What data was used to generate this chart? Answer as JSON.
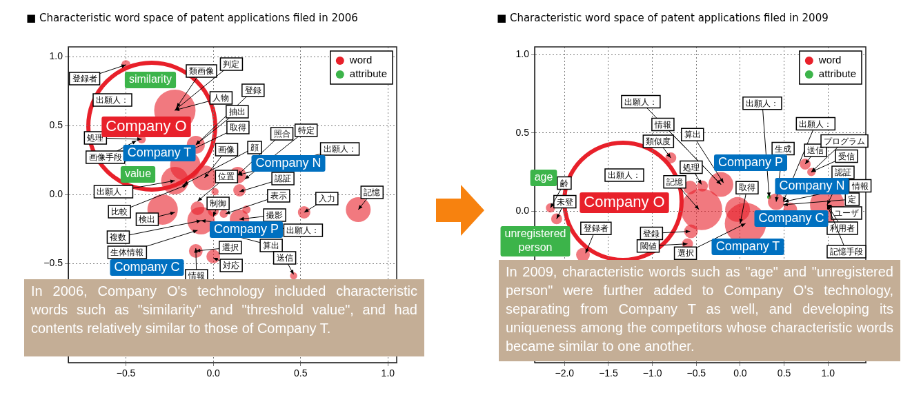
{
  "chart_data": [
    {
      "type": "bubble",
      "title": "■ Characteristic word space of patent applications filed in 2006",
      "xlim": [
        -0.83,
        1.05
      ],
      "ylim": [
        -1.22,
        1.07
      ],
      "xticks": [
        {
          "value": -0.5,
          "label": "−0.5"
        },
        {
          "value": 0,
          "label": "0.0"
        },
        {
          "value": 0.5,
          "label": "0.5"
        },
        {
          "value": 1,
          "label": "1.0"
        }
      ],
      "yticks": [
        {
          "value": -0.5,
          "label": "−0.5"
        },
        {
          "value": 0,
          "label": "0.0"
        },
        {
          "value": 0.5,
          "label": "0.5"
        },
        {
          "value": 1,
          "label": "1.0"
        }
      ],
      "grid": true,
      "legend": "top right",
      "series": [
        {
          "name": "word",
          "color": "#e8202a",
          "x": [
            -0.5,
            -0.22,
            -0.1,
            -0.16,
            -0.05,
            -0.22,
            -0.29,
            -0.07,
            -0.09,
            0,
            0.01,
            0.14,
            0.15,
            0.06,
            0.15,
            0.19,
            0.52,
            0.83,
            -0.1,
            0,
            0.46,
            -0.41
          ],
          "values": [
            0.94,
            0.61,
            0.36,
            0.21,
            0.12,
            0.1,
            -0.11,
            -0.19,
            -0.1,
            -0.12,
            0.02,
            0.14,
            0.03,
            -0.14,
            -0.18,
            -0.11,
            -0.13,
            -0.11,
            -0.41,
            -0.45,
            -0.59,
            0.4
          ],
          "sizes": [
            0.05,
            1,
            0.19,
            0.54,
            0.36,
            0.44,
            0.54,
            0.44,
            0.11,
            0.07,
            0.03,
            0.16,
            0.09,
            0.04,
            0.22,
            0.04,
            0.09,
            0.36,
            0.11,
            0.11,
            0.03,
            0.04
          ]
        },
        {
          "name": "attribute",
          "color": "#3cb44a"
        }
      ],
      "annotations": [
        {
          "text": "登録者",
          "x": -0.5,
          "y": 0.94
        },
        {
          "text": "類画像",
          "x": -0.21,
          "y": 0.63
        },
        {
          "text": "判定",
          "x": -0.22,
          "y": 0.61
        },
        {
          "text": "人物",
          "x": -0.22,
          "y": 0.61
        },
        {
          "text": "登録",
          "x": -0.1,
          "y": 0.36
        },
        {
          "text": "抽出",
          "x": -0.1,
          "y": 0.36
        },
        {
          "text": "取得",
          "x": -0.23,
          "y": 0.26
        },
        {
          "text": "画像",
          "x": -0.05,
          "y": 0.12
        },
        {
          "text": "顔",
          "x": -0.17,
          "y": 0.07
        },
        {
          "text": "照合",
          "x": 0.14,
          "y": 0.14
        },
        {
          "text": "特定",
          "x": 0.18,
          "y": 0.11
        },
        {
          "text": "出願人：",
          "x": 0.14,
          "y": 0.14
        },
        {
          "text": "位置",
          "x": -0.09,
          "y": -0.05
        },
        {
          "text": "認証",
          "x": 0.15,
          "y": 0.02
        },
        {
          "text": "表示",
          "x": 0.07,
          "y": -0.14
        },
        {
          "text": "入力",
          "x": 0.52,
          "y": -0.13
        },
        {
          "text": "記憶",
          "x": 0.83,
          "y": -0.11
        },
        {
          "text": "制御",
          "x": 0,
          "y": -0.16
        },
        {
          "text": "撮影",
          "x": 0.15,
          "y": -0.18
        },
        {
          "text": "出願人：",
          "x": -0.07,
          "y": -0.19
        },
        {
          "text": "算出",
          "x": 0,
          "y": -0.26
        },
        {
          "text": "選択",
          "x": -0.1,
          "y": -0.41
        },
        {
          "text": "対応",
          "x": 0,
          "y": -0.46
        },
        {
          "text": "送信",
          "x": 0.46,
          "y": -0.58
        },
        {
          "text": "処理",
          "x": -0.41,
          "y": 0.4
        },
        {
          "text": "画像手段",
          "x": -0.44,
          "y": 0.39
        },
        "出願人：",
        {
          "text": "出願人：",
          "x": -0.22,
          "y": 0.1
        },
        {
          "text": "比較",
          "x": -0.15,
          "y": 0.07
        },
        {
          "text": "検出",
          "x": -0.22,
          "y": -0.13
        },
        {
          "text": "複数",
          "x": -0.07,
          "y": -0.19
        },
        {
          "text": "生体情報",
          "x": -0.09,
          "y": -0.26
        },
        {
          "text": "情報",
          "x": -0.1,
          "y": -0.39
        },
        "similarity",
        "value",
        "Company O",
        "Company T",
        "Company N",
        "Company P",
        "Company C",
        "In 2006, Company O's technology included characteristic words such as \"similarity\" and \"threshold value\", and had contents relatively similar to those of Company T."
      ]
    },
    {
      "type": "bubble",
      "title": "■ Characteristic word space of patent applications filed in 2009",
      "xlim": [
        -2.34,
        1.43
      ],
      "ylim": [
        -0.97,
        1.05
      ],
      "xticks": [
        {
          "value": -2,
          "label": "−2.0"
        },
        {
          "value": -1.5,
          "label": "−1.5"
        },
        {
          "value": -1,
          "label": "−1.0"
        },
        {
          "value": -0.5,
          "label": "−0.5"
        },
        {
          "value": 0,
          "label": "0.0"
        },
        {
          "value": 0.5,
          "label": "0.5"
        },
        {
          "value": 1,
          "label": "1.0"
        }
      ],
      "yticks": [
        {
          "value": 0,
          "label": "0.0"
        },
        {
          "value": 0.5,
          "label": "0.5"
        },
        {
          "value": 1,
          "label": "1.0"
        }
      ],
      "grid": true,
      "legend": "top right",
      "series": [
        {
          "name": "word",
          "color": "#e8202a",
          "x": [
            -2.16,
            -2.09,
            -1.79,
            -0.79,
            -0.57,
            -0.43,
            -0.22,
            -0.44,
            -0.56,
            0.06,
            0.41,
            0.57,
            0.99,
            0.74,
            0.81,
            -0.6,
            -0.03
          ],
          "values": [
            0.02,
            -0.05,
            -0.28,
            0.34,
            0.15,
            0.16,
            0.17,
            0.01,
            -0.13,
            -0.08,
            0.06,
            0.01,
            0.04,
            0.3,
            0.25,
            -0.21,
            0.01
          ],
          "sizes": [
            0.05,
            0.07,
            0.11,
            0.07,
            0.11,
            0.07,
            0.36,
            1,
            0.11,
            1,
            0.16,
            0.11,
            0.69,
            0.07,
            0.04,
            0.07,
            0.36
          ]
        },
        {
          "name": "attribute",
          "color": "#3cb44a",
          "type": "scatter",
          "x": [
            0.33
          ],
          "values": [
            0.09
          ]
        }
      ],
      "annotations": [
        {
          "text": "出願人：",
          "x": -0.22,
          "y": 0.17
        },
        {
          "text": "出願人：",
          "x": 0.33,
          "y": 0.09
        },
        {
          "text": "出願人：",
          "x": 0.49,
          "y": 0.06
        },
        {
          "text": "情報",
          "x": -0.22,
          "y": 0.17
        },
        {
          "text": "算出",
          "x": -0.19,
          "y": 0.18
        },
        {
          "text": "類似度",
          "x": -0.79,
          "y": 0.34
        },
        {
          "text": "処理",
          "x": -0.44,
          "y": 0.17
        },
        {
          "text": "記憶",
          "x": -0.47,
          "y": 0.01
        },
        {
          "text": "取得",
          "x": 0,
          "y": -0.08
        },
        {
          "text": "生成",
          "x": 0.41,
          "y": 0.06
        },
        {
          "text": "送信",
          "x": 0.74,
          "y": 0.3
        },
        {
          "text": "プログラム",
          "x": 0.81,
          "y": 0.25
        },
        {
          "text": "受信",
          "x": 0.81,
          "y": 0.25
        },
        {
          "text": "認証",
          "x": 0.99,
          "y": 0.04
        },
        {
          "text": "情報",
          "x": 0.5,
          "y": 0.06
        },
        {
          "text": "定",
          "x": 0.49,
          "y": 0.04
        },
        {
          "text": "ユーザ",
          "x": 0.99,
          "y": 0.04
        },
        {
          "text": "利用者",
          "x": 0.99,
          "y": 0.04
        },
        {
          "text": "記憶手段",
          "x": 0.99,
          "y": 0.04
        },
        {
          "text": "登録者",
          "x": -1.76,
          "y": -0.27
        },
        {
          "text": "未登",
          "x": -2.09,
          "y": -0.05
        },
        {
          "text": "齢",
          "x": -2.16,
          "y": 0.02
        },
        "出願人：",
        {
          "text": "登録",
          "x": -0.57,
          "y": -0.13
        },
        {
          "text": "閾値",
          "x": -0.6,
          "y": -0.21
        },
        {
          "text": "選択",
          "x": 0.06,
          "y": -0.08
        },
        "age",
        "unregistered person",
        "Company O",
        "Company P",
        "Company N",
        "Company C",
        "Company T",
        "In 2009, characteristic words such as \"age\" and \"unregistered person\" were further added to Company O's technology, separating from Company T as well, and developing its uniqueness among the competitors whose characteristic words became similar to one another."
      ]
    }
  ]
}
